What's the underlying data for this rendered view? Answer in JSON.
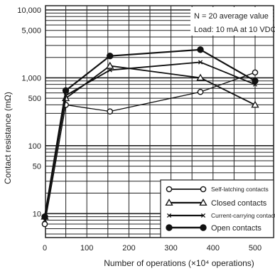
{
  "chart_data": {
    "type": "line",
    "xlabel": "Number of operations (×10⁴ operations)",
    "ylabel": "Contact resistance (mΩ)",
    "xlim": [
      0,
      500
    ],
    "ylim": [
      5,
      10000
    ],
    "yscale": "log",
    "x_ticks": [
      0,
      100,
      200,
      300,
      400,
      500
    ],
    "y_ticks": [
      {
        "value": 10000,
        "label": "10,000"
      },
      {
        "value": 5000,
        "label": "5,000"
      },
      {
        "value": 1000,
        "label": "1,000"
      },
      {
        "value": 500,
        "label": "500"
      },
      {
        "value": 100,
        "label": "100"
      },
      {
        "value": 50,
        "label": "50"
      },
      {
        "value": 10,
        "label": "10"
      }
    ],
    "grid": true,
    "annotations": [
      "N = 20 average value",
      "Load: 10 mA at 10 VDC"
    ],
    "legend_position": "bottom-right",
    "series": [
      {
        "name": "Self-latching contacts",
        "marker": "open-circle",
        "x": [
          0,
          50,
          155,
          370,
          500
        ],
        "y": [
          7,
          400,
          320,
          620,
          1200
        ]
      },
      {
        "name": "Closed contacts",
        "marker": "triangle",
        "x": [
          0,
          50,
          155,
          370,
          500
        ],
        "y": [
          9,
          500,
          1500,
          1000,
          400
        ]
      },
      {
        "name": "Current-carrying contact",
        "marker": "cross",
        "x": [
          0,
          50,
          155,
          370,
          500
        ],
        "y": [
          8,
          550,
          1300,
          1700,
          800
        ]
      },
      {
        "name": "Open contacts",
        "marker": "filled-circle",
        "x": [
          0,
          50,
          155,
          370,
          500
        ],
        "y": [
          9,
          650,
          2100,
          2600,
          900
        ]
      }
    ]
  }
}
